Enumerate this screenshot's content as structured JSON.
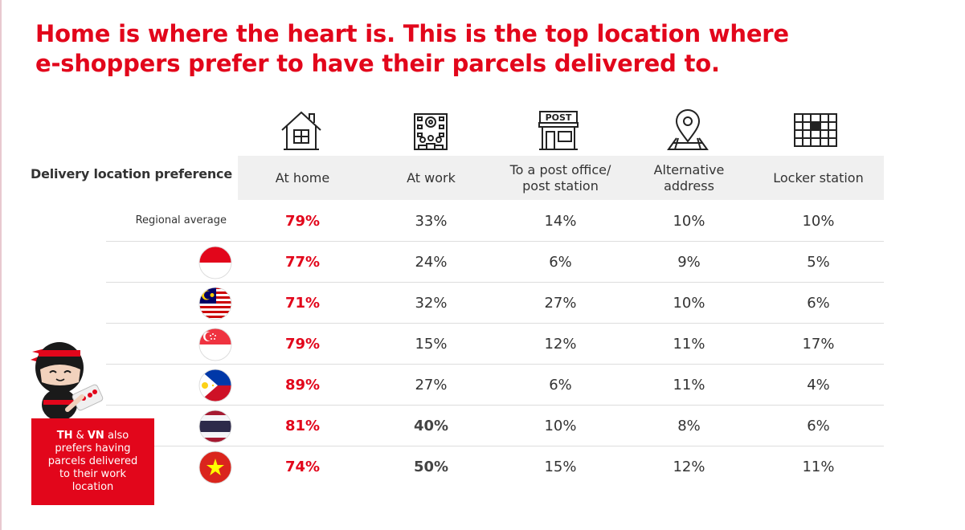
{
  "headline": {
    "line1": "Home is where the heart is. This is the top location where",
    "line2": "e-shoppers prefer to have their parcels delivered to."
  },
  "table": {
    "row_header": "Delivery location preference",
    "columns": [
      {
        "lines": [
          "At home"
        ],
        "icon": "house-icon"
      },
      {
        "lines": [
          "At work"
        ],
        "icon": "office-building-icon"
      },
      {
        "lines": [
          "To a post office/",
          "post station"
        ],
        "icon": "post-office-icon"
      },
      {
        "lines": [
          "Alternative",
          "address"
        ],
        "icon": "location-pin-map-icon"
      },
      {
        "lines": [
          "Locker station"
        ],
        "icon": "locker-icon"
      }
    ],
    "regional_label": "Regional average",
    "rows": [
      {
        "flag": "regional",
        "values": [
          "79%",
          "33%",
          "14%",
          "10%",
          "10%"
        ]
      },
      {
        "flag": "indonesia-flag-icon",
        "values": [
          "77%",
          "24%",
          "6%",
          "9%",
          "5%"
        ]
      },
      {
        "flag": "malaysia-flag-icon",
        "values": [
          "71%",
          "32%",
          "27%",
          "10%",
          "6%"
        ]
      },
      {
        "flag": "singapore-flag-icon",
        "values": [
          "79%",
          "15%",
          "12%",
          "11%",
          "17%"
        ]
      },
      {
        "flag": "philippines-flag-icon",
        "values": [
          "89%",
          "27%",
          "6%",
          "11%",
          "4%"
        ]
      },
      {
        "flag": "thailand-flag-icon",
        "values": [
          "81%",
          "40%",
          "10%",
          "8%",
          "6%"
        ]
      },
      {
        "flag": "vietnam-flag-icon",
        "values": [
          "74%",
          "50%",
          "15%",
          "12%",
          "11%"
        ]
      }
    ]
  },
  "chart_data": {
    "type": "table",
    "title": "Home is where the heart is. This is the top location where e-shoppers prefer to have their parcels delivered to.",
    "categories": [
      "At home",
      "At work",
      "To a post office/ post station",
      "Alternative address",
      "Locker station"
    ],
    "series": [
      {
        "name": "Regional average",
        "values": [
          79,
          33,
          14,
          10,
          10
        ]
      },
      {
        "values": [
          77,
          24,
          6,
          9,
          5
        ]
      },
      {
        "values": [
          71,
          32,
          27,
          10,
          6
        ]
      },
      {
        "values": [
          79,
          15,
          12,
          11,
          17
        ]
      },
      {
        "values": [
          89,
          27,
          6,
          11,
          4
        ]
      },
      {
        "values": [
          81,
          40,
          10,
          8,
          6
        ]
      },
      {
        "values": [
          74,
          50,
          15,
          12,
          11
        ]
      }
    ]
  },
  "note": {
    "bold1": "TH",
    "amp": " & ",
    "bold2": "VN",
    "line1_rest": " also",
    "line2": "prefers having",
    "line3": "parcels delivered",
    "line4": "to their work",
    "line5": "location"
  },
  "colors": {
    "accent": "#e2061b",
    "header_band": "#f0f0f0",
    "text": "#333333"
  }
}
